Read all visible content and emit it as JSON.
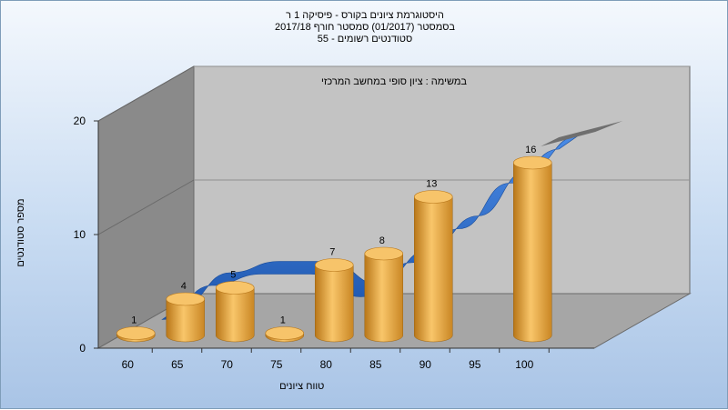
{
  "chart_data": {
    "type": "bar",
    "title_lines": [
      "היסטוגרמת ציונים בקורס - פיסיקה 1 ר",
      "בסמסטר  (01/2017)  סמסטר חורף  2017/18",
      "סטודנטים רשומים - 55"
    ],
    "subtitle": "במשימה : ציון סופי במחשב המרכזי",
    "xlabel": "טווח ציונים",
    "ylabel": "מספר סטודנטים",
    "x_ticks": [
      "60",
      "65",
      "70",
      "75",
      "80",
      "85",
      "90",
      "95",
      "100"
    ],
    "y_ticks": [
      0,
      10,
      20
    ],
    "ylim": [
      0,
      20
    ],
    "categories": [
      "60",
      "65",
      "70",
      "75",
      "80",
      "85",
      "90",
      "95",
      "100"
    ],
    "series": [
      {
        "values": [
          1,
          4,
          5,
          1,
          7,
          8,
          13,
          0,
          16
        ]
      },
      {
        "values": [
          1,
          4,
          5,
          5,
          3,
          6,
          9,
          13,
          16
        ]
      }
    ],
    "bar_color": "#e8a83c",
    "ribbon_color": "#2f6fd0",
    "legend": false
  }
}
